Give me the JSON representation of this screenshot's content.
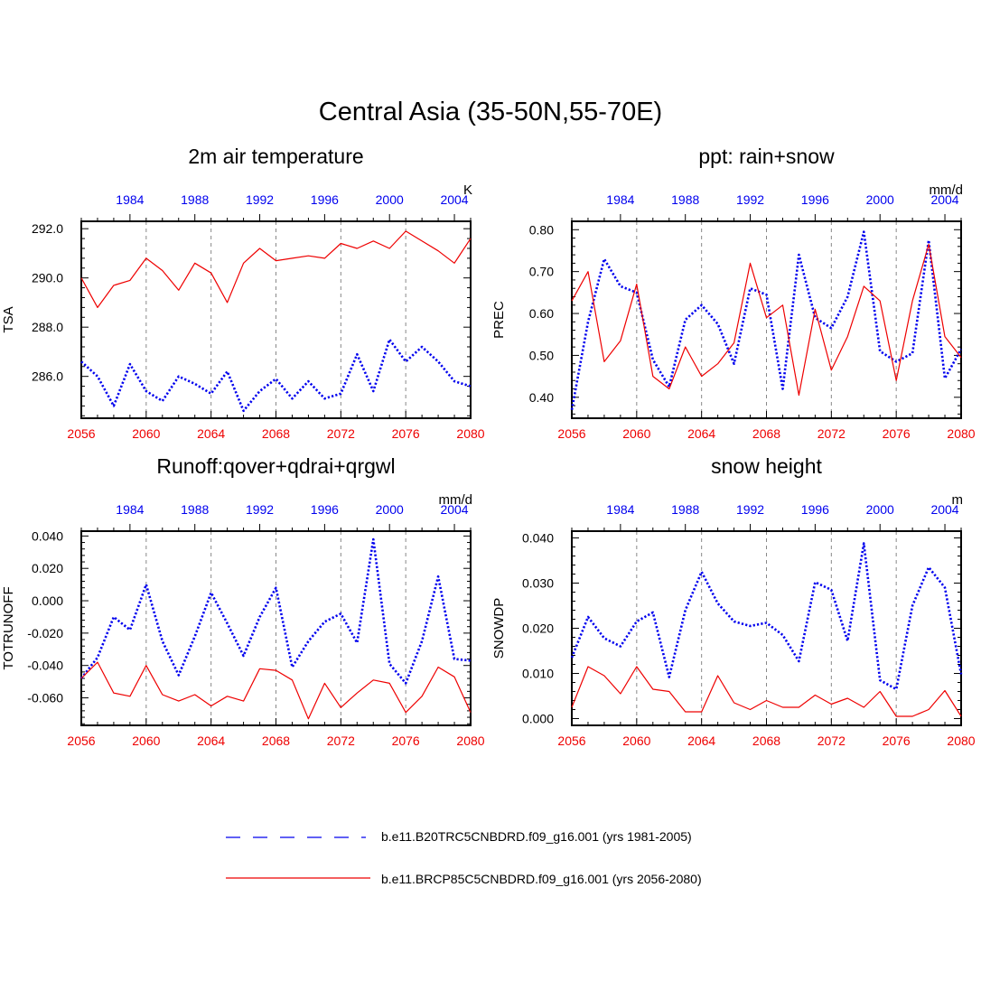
{
  "title": "Central Asia (35-50N,55-70E)",
  "colors": {
    "historical": "#0000ee",
    "future": "#ee0000",
    "axis": "#000000",
    "grid": "#888888"
  },
  "legend": [
    {
      "label": "b.e11.B20TRC5CNBDRD.f09_g16.001 (yrs 1981-2005)",
      "style": "dashed",
      "color": "#0000ee"
    },
    {
      "label": "b.e11.BRCP85C5CNBDRD.f09_g16.001 (yrs 2056-2080)",
      "style": "solid",
      "color": "#ee0000"
    }
  ],
  "chart_data": [
    {
      "type": "line",
      "title": "2m air temperature",
      "ylabel": "TSA",
      "units": "K",
      "ylim": [
        284.3,
        292.3
      ],
      "yticks": [
        286,
        288,
        290,
        292
      ],
      "ytick_labels": [
        "286.0",
        "288.0",
        "290.0",
        "292.0"
      ],
      "x_bottom": {
        "range": [
          2056,
          2080
        ],
        "ticks": [
          2056,
          2060,
          2064,
          2068,
          2072,
          2076,
          2080
        ]
      },
      "x_top": {
        "range": [
          1981,
          2005
        ],
        "ticks": [
          1984,
          1988,
          1992,
          1996,
          2000,
          2004
        ]
      },
      "gridlines_x": [
        2060,
        2064,
        2068,
        2072,
        2076
      ],
      "series": [
        {
          "name": "b.e11.B20TRC5CNBDRD.f09_g16.001 (yrs 1981-2005)",
          "style": "dotted",
          "color": "#0000ee",
          "values": [
            286.6,
            286.0,
            284.8,
            286.5,
            285.4,
            285.0,
            286.0,
            285.7,
            285.3,
            286.2,
            284.6,
            285.4,
            285.9,
            285.1,
            285.8,
            285.1,
            285.3,
            286.9,
            285.4,
            287.5,
            286.6,
            287.2,
            286.6,
            285.8,
            285.6
          ]
        },
        {
          "name": "b.e11.BRCP85C5CNBDRD.f09_g16.001 (yrs 2056-2080)",
          "style": "solid",
          "color": "#ee0000",
          "values": [
            290.0,
            288.8,
            289.7,
            289.9,
            290.8,
            290.3,
            289.5,
            290.6,
            290.2,
            289.0,
            290.6,
            291.2,
            290.7,
            290.8,
            290.9,
            290.8,
            291.4,
            291.2,
            291.5,
            291.2,
            291.9,
            291.5,
            291.1,
            290.6,
            291.6
          ]
        }
      ]
    },
    {
      "type": "line",
      "title": "ppt: rain+snow",
      "ylabel": "PREC",
      "units": "mm/d",
      "ylim": [
        0.35,
        0.82
      ],
      "yticks": [
        0.4,
        0.5,
        0.6,
        0.7,
        0.8
      ],
      "ytick_labels": [
        "0.40",
        "0.50",
        "0.60",
        "0.70",
        "0.80"
      ],
      "x_bottom": {
        "range": [
          2056,
          2080
        ],
        "ticks": [
          2056,
          2060,
          2064,
          2068,
          2072,
          2076,
          2080
        ]
      },
      "x_top": {
        "range": [
          1981,
          2005
        ],
        "ticks": [
          1984,
          1988,
          1992,
          1996,
          2000,
          2004
        ]
      },
      "gridlines_x": [
        2060,
        2064,
        2068,
        2072,
        2076
      ],
      "series": [
        {
          "name": "b.e11.B20TRC5CNBDRD.f09_g16.001 (yrs 1981-2005)",
          "style": "dotted",
          "color": "#0000ee",
          "values": [
            0.37,
            0.58,
            0.73,
            0.665,
            0.65,
            0.49,
            0.425,
            0.585,
            0.62,
            0.575,
            0.48,
            0.66,
            0.645,
            0.42,
            0.74,
            0.59,
            0.565,
            0.64,
            0.795,
            0.51,
            0.485,
            0.505,
            0.775,
            0.445,
            0.515
          ]
        },
        {
          "name": "b.e11.BRCP85C5CNBDRD.f09_g16.001 (yrs 2056-2080)",
          "style": "solid",
          "color": "#ee0000",
          "values": [
            0.63,
            0.7,
            0.485,
            0.535,
            0.67,
            0.45,
            0.42,
            0.52,
            0.45,
            0.48,
            0.53,
            0.72,
            0.59,
            0.62,
            0.405,
            0.61,
            0.465,
            0.545,
            0.665,
            0.63,
            0.44,
            0.63,
            0.765,
            0.545,
            0.495
          ]
        }
      ]
    },
    {
      "type": "line",
      "title": "Runoff:qover+qdrai+qrgwl",
      "ylabel": "TOTRUNOFF",
      "units": "mm/d",
      "ylim": [
        -0.077,
        0.043
      ],
      "yticks": [
        -0.06,
        -0.04,
        -0.02,
        0.0,
        0.02,
        0.04
      ],
      "ytick_labels": [
        "-0.060",
        "-0.040",
        "-0.020",
        "0.000",
        "0.020",
        "0.040"
      ],
      "x_bottom": {
        "range": [
          2056,
          2080
        ],
        "ticks": [
          2056,
          2060,
          2064,
          2068,
          2072,
          2076,
          2080
        ]
      },
      "x_top": {
        "range": [
          1981,
          2005
        ],
        "ticks": [
          1984,
          1988,
          1992,
          1996,
          2000,
          2004
        ]
      },
      "gridlines_x": [
        2060,
        2064,
        2068,
        2072,
        2076
      ],
      "series": [
        {
          "name": "b.e11.B20TRC5CNBDRD.f09_g16.001 (yrs 1981-2005)",
          "style": "dotted",
          "color": "#0000ee",
          "values": [
            -0.048,
            -0.035,
            -0.01,
            -0.018,
            0.01,
            -0.025,
            -0.046,
            -0.022,
            0.005,
            -0.014,
            -0.034,
            -0.01,
            0.008,
            -0.041,
            -0.025,
            -0.013,
            -0.008,
            -0.026,
            0.038,
            -0.039,
            -0.051,
            -0.025,
            0.015,
            -0.036,
            -0.037
          ]
        },
        {
          "name": "b.e11.BRCP85C5CNBDRD.f09_g16.001 (yrs 2056-2080)",
          "style": "solid",
          "color": "#ee0000",
          "values": [
            -0.048,
            -0.038,
            -0.057,
            -0.059,
            -0.04,
            -0.058,
            -0.062,
            -0.058,
            -0.065,
            -0.059,
            -0.062,
            -0.042,
            -0.043,
            -0.049,
            -0.073,
            -0.051,
            -0.066,
            -0.057,
            -0.049,
            -0.051,
            -0.069,
            -0.059,
            -0.041,
            -0.047,
            -0.069
          ]
        }
      ]
    },
    {
      "type": "line",
      "title": "snow height",
      "ylabel": "SNOWDP",
      "units": "m",
      "ylim": [
        -0.0015,
        0.0415
      ],
      "yticks": [
        0.0,
        0.01,
        0.02,
        0.03,
        0.04
      ],
      "ytick_labels": [
        "0.000",
        "0.010",
        "0.020",
        "0.030",
        "0.040"
      ],
      "x_bottom": {
        "range": [
          2056,
          2080
        ],
        "ticks": [
          2056,
          2060,
          2064,
          2068,
          2072,
          2076,
          2080
        ]
      },
      "x_top": {
        "range": [
          1981,
          2005
        ],
        "ticks": [
          1984,
          1988,
          1992,
          1996,
          2000,
          2004
        ]
      },
      "gridlines_x": [
        2060,
        2064,
        2068,
        2072,
        2076
      ],
      "series": [
        {
          "name": "b.e11.B20TRC5CNBDRD.f09_g16.001 (yrs 1981-2005)",
          "style": "dotted",
          "color": "#0000ee",
          "values": [
            0.0135,
            0.0225,
            0.0178,
            0.016,
            0.0215,
            0.0235,
            0.0092,
            0.024,
            0.0325,
            0.0255,
            0.0215,
            0.0205,
            0.0212,
            0.0185,
            0.0127,
            0.0302,
            0.0285,
            0.0172,
            0.0388,
            0.0085,
            0.0065,
            0.025,
            0.0335,
            0.029,
            0.0098
          ]
        },
        {
          "name": "b.e11.BRCP85C5CNBDRD.f09_g16.001 (yrs 2056-2080)",
          "style": "solid",
          "color": "#ee0000",
          "values": [
            0.0025,
            0.0115,
            0.0095,
            0.0055,
            0.0115,
            0.0065,
            0.006,
            0.0015,
            0.0015,
            0.0095,
            0.0035,
            0.002,
            0.004,
            0.0025,
            0.0025,
            0.0052,
            0.0032,
            0.0045,
            0.0025,
            0.006,
            0.0005,
            0.0005,
            0.002,
            0.0062,
            0.0005
          ]
        }
      ]
    }
  ]
}
